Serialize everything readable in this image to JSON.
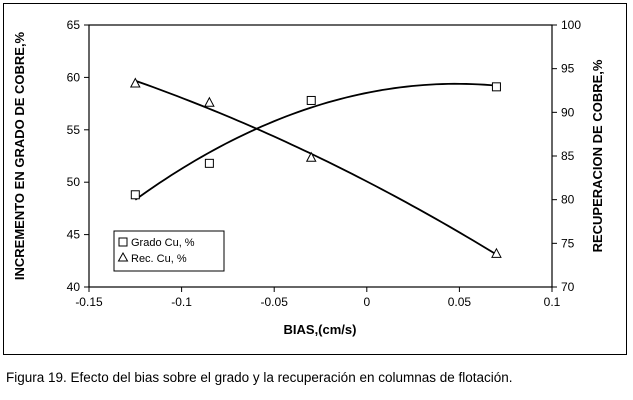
{
  "caption": "Figura  19. Efecto del bias sobre el grado y la recuperación en columnas de flotación.",
  "chart_data": {
    "type": "scatter",
    "xlabel": "BIAS,(cm/s)",
    "ylabel_left": "INCREMENTO EN GRADO DE COBRE,%",
    "ylabel_right": "RECUPERACION DE COBRE,%",
    "xlim": [
      -0.15,
      0.1
    ],
    "ylim_left": [
      40,
      65
    ],
    "ylim_right": [
      70,
      100
    ],
    "x_ticks": [
      "-0.15",
      "-0.1",
      "-0.05",
      "0",
      "0.05",
      "0.1"
    ],
    "y_ticks_left": [
      "40",
      "45",
      "50",
      "55",
      "60",
      "65"
    ],
    "y_ticks_right": [
      "70",
      "75",
      "80",
      "85",
      "90",
      "95",
      "100"
    ],
    "grid": false,
    "legend_position": "lower-left",
    "series": [
      {
        "name": "Grado Cu, %",
        "axis": "left",
        "marker": "square",
        "x": [
          -0.125,
          -0.085,
          -0.03,
          0.07
        ],
        "y": [
          48.8,
          51.8,
          57.8,
          59.1
        ],
        "trend": "polynomial"
      },
      {
        "name": "Rec. Cu, %",
        "axis": "right",
        "marker": "triangle",
        "x": [
          -0.125,
          -0.085,
          -0.03,
          0.07
        ],
        "y": [
          93.3,
          91.1,
          84.8,
          73.8
        ],
        "trend": "polynomial"
      }
    ]
  }
}
